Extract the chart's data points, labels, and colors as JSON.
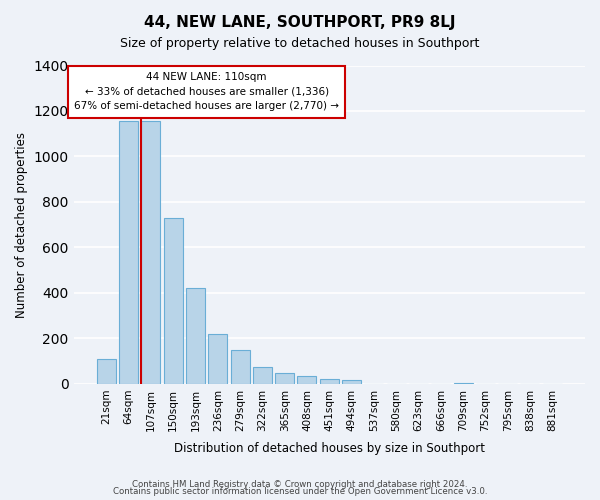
{
  "title": "44, NEW LANE, SOUTHPORT, PR9 8LJ",
  "subtitle": "Size of property relative to detached houses in Southport",
  "xlabel": "Distribution of detached houses by size in Southport",
  "ylabel": "Number of detached properties",
  "bar_labels": [
    "21sqm",
    "64sqm",
    "107sqm",
    "150sqm",
    "193sqm",
    "236sqm",
    "279sqm",
    "322sqm",
    "365sqm",
    "408sqm",
    "451sqm",
    "494sqm",
    "537sqm",
    "580sqm",
    "623sqm",
    "666sqm",
    "709sqm",
    "752sqm",
    "795sqm",
    "838sqm",
    "881sqm"
  ],
  "bar_values": [
    110,
    1155,
    1155,
    730,
    420,
    220,
    148,
    75,
    50,
    35,
    20,
    15,
    0,
    0,
    0,
    0,
    5,
    0,
    0,
    0,
    0
  ],
  "bar_color": "#b8d4e8",
  "bar_edge_color": "#6aaed6",
  "vline_x_index": 2,
  "vline_color": "#cc0000",
  "annotation_title": "44 NEW LANE: 110sqm",
  "annotation_line1": "← 33% of detached houses are smaller (1,336)",
  "annotation_line2": "67% of semi-detached houses are larger (2,770) →",
  "annotation_box_color": "#ffffff",
  "annotation_box_edge": "#cc0000",
  "ylim": [
    0,
    1400
  ],
  "yticks": [
    0,
    200,
    400,
    600,
    800,
    1000,
    1200,
    1400
  ],
  "footer1": "Contains HM Land Registry data © Crown copyright and database right 2024.",
  "footer2": "Contains public sector information licensed under the Open Government Licence v3.0.",
  "background_color": "#eef2f8",
  "grid_color": "#ffffff"
}
